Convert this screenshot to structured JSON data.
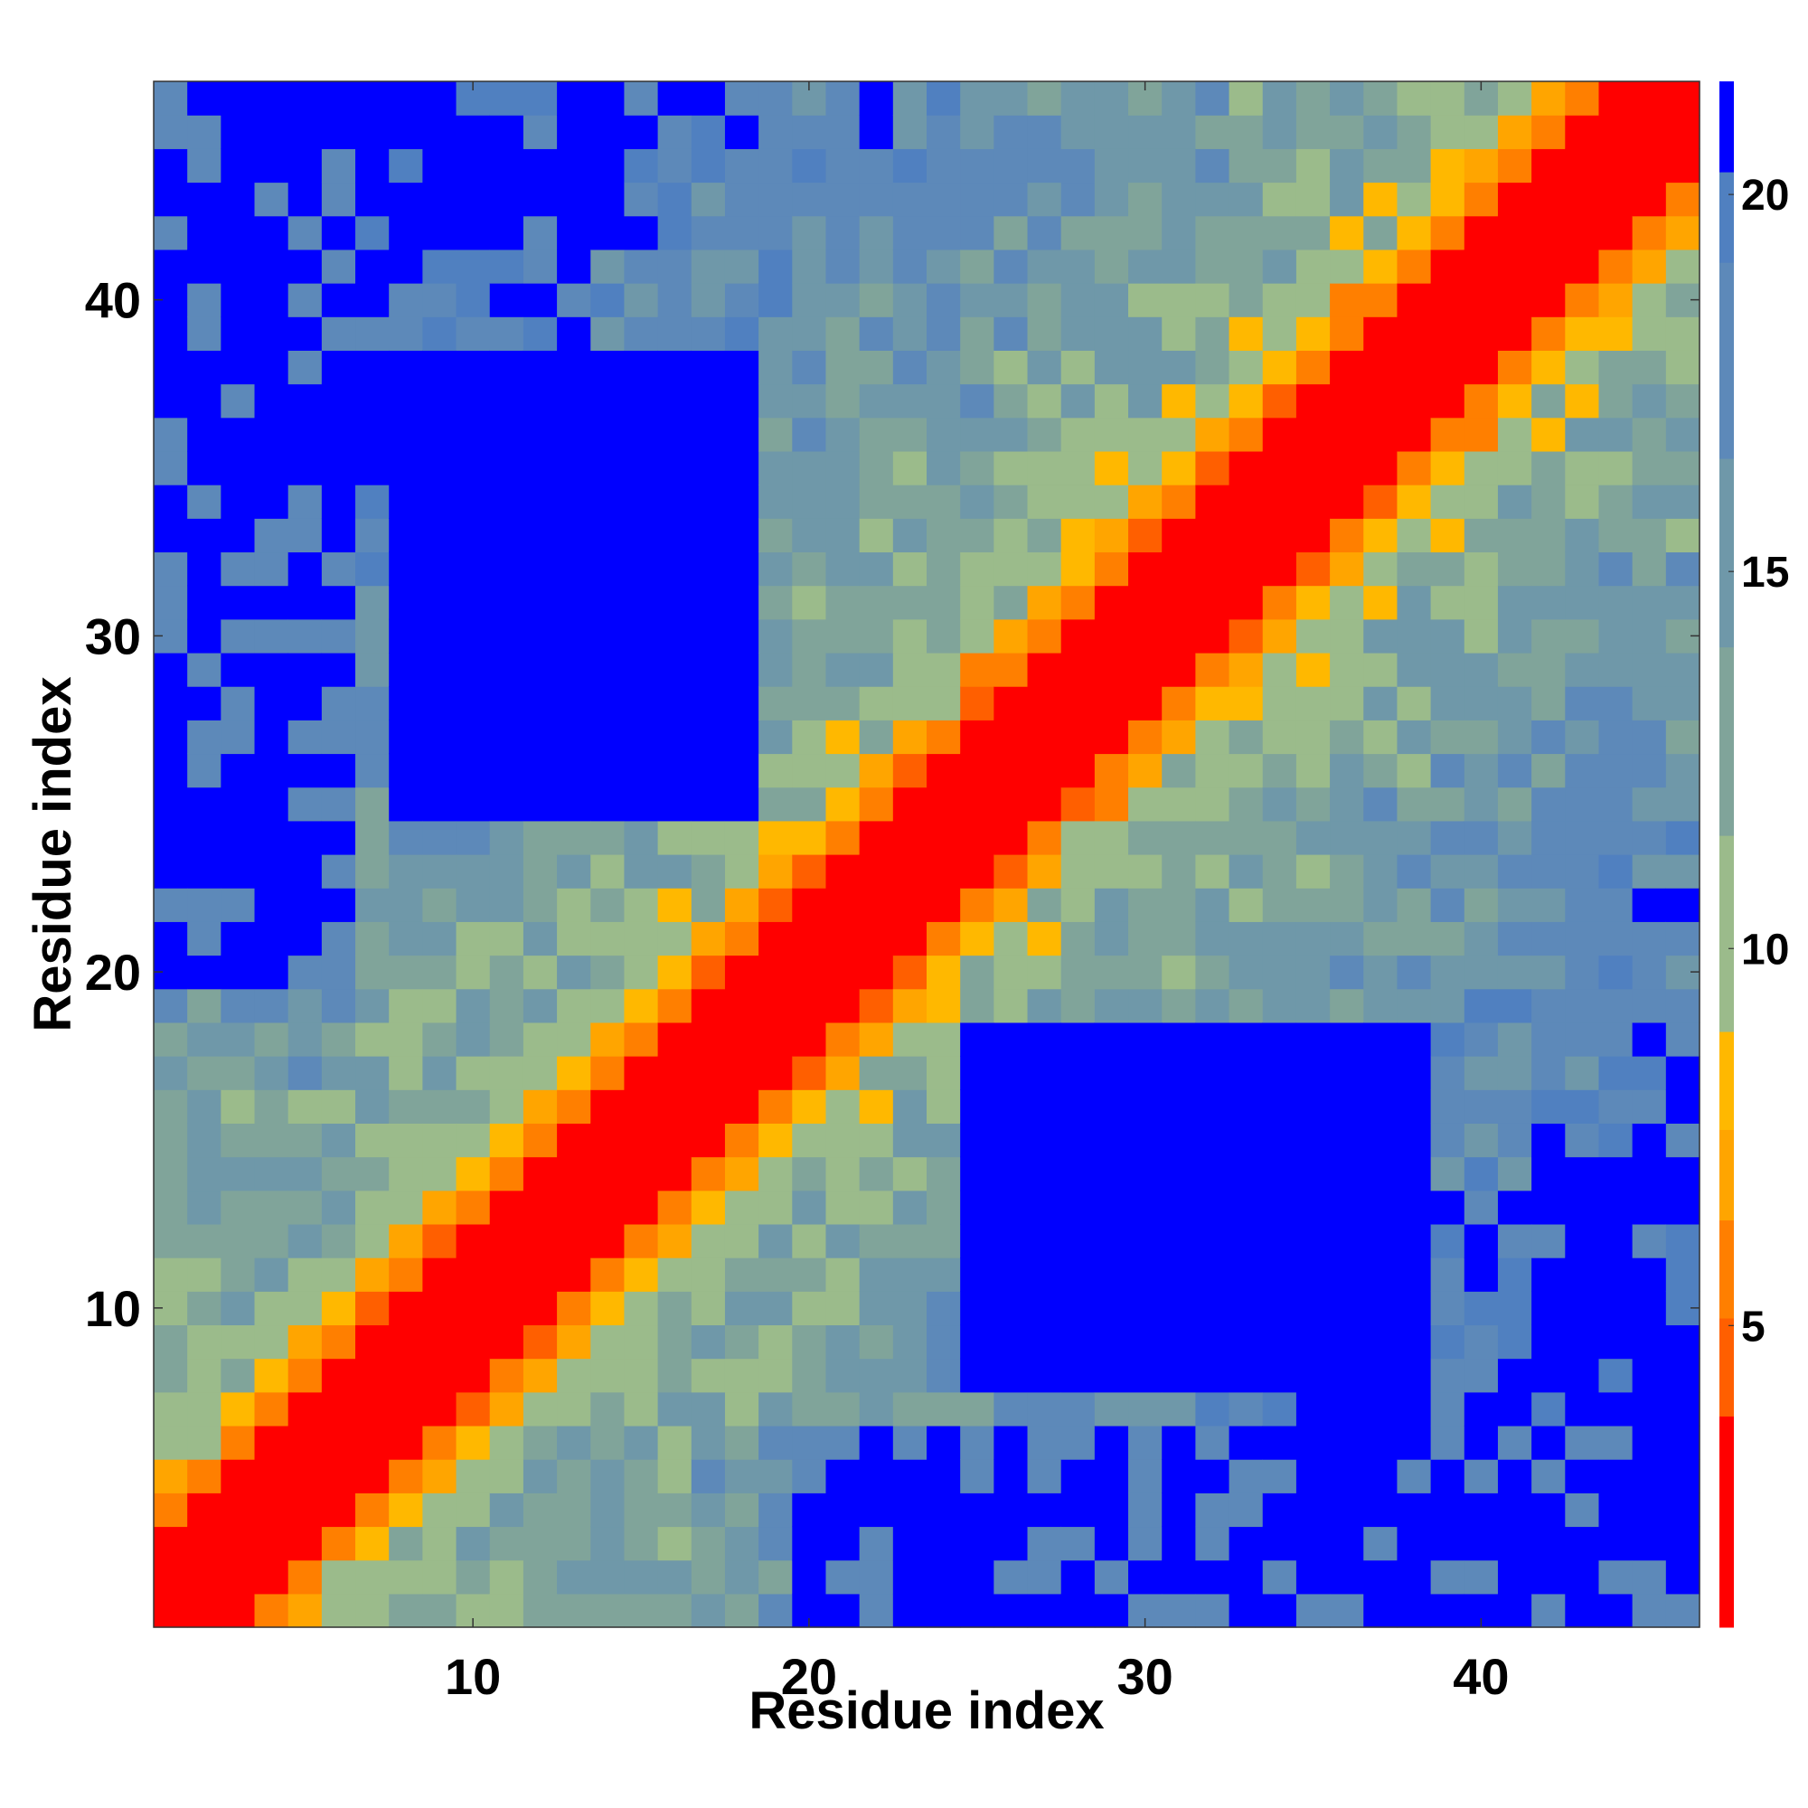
{
  "chart_data": {
    "type": "heatmap",
    "title": "",
    "xlabel": "Residue index",
    "ylabel": "Residue index",
    "n": 46,
    "x_range": [
      0.5,
      46.5
    ],
    "y_range": [
      0.5,
      46.5
    ],
    "x_ticks": [
      10,
      20,
      30,
      40
    ],
    "y_ticks": [
      10,
      20,
      30,
      40
    ],
    "x_tick_labels": [
      "10",
      "20",
      "30",
      "40"
    ],
    "y_tick_labels": [
      "10",
      "20",
      "30",
      "40"
    ],
    "colorbar": {
      "range": [
        1,
        21.5
      ],
      "ticks": [
        5,
        10,
        15,
        20
      ],
      "tick_labels": [
        "5",
        "10",
        "15",
        "20"
      ],
      "levels": [
        {
          "upper": 3.8,
          "color": "#ff0000"
        },
        {
          "upper": 5.1,
          "color": "#ff5f00"
        },
        {
          "upper": 6.4,
          "color": "#ff7f00"
        },
        {
          "upper": 7.6,
          "color": "#ffa500"
        },
        {
          "upper": 8.9,
          "color": "#ffb800"
        },
        {
          "upper": 11.5,
          "color": "#9bbb8b"
        },
        {
          "upper": 14.0,
          "color": "#80a49a"
        },
        {
          "upper": 16.5,
          "color": "#6f98a9"
        },
        {
          "upper": 19.1,
          "color": "#5d89b9"
        },
        {
          "upper": 20.3,
          "color": "#5080c0"
        },
        {
          "upper": 21.5,
          "color": "#0000ff"
        }
      ]
    },
    "grid": false,
    "legend": "colorbar-right"
  }
}
